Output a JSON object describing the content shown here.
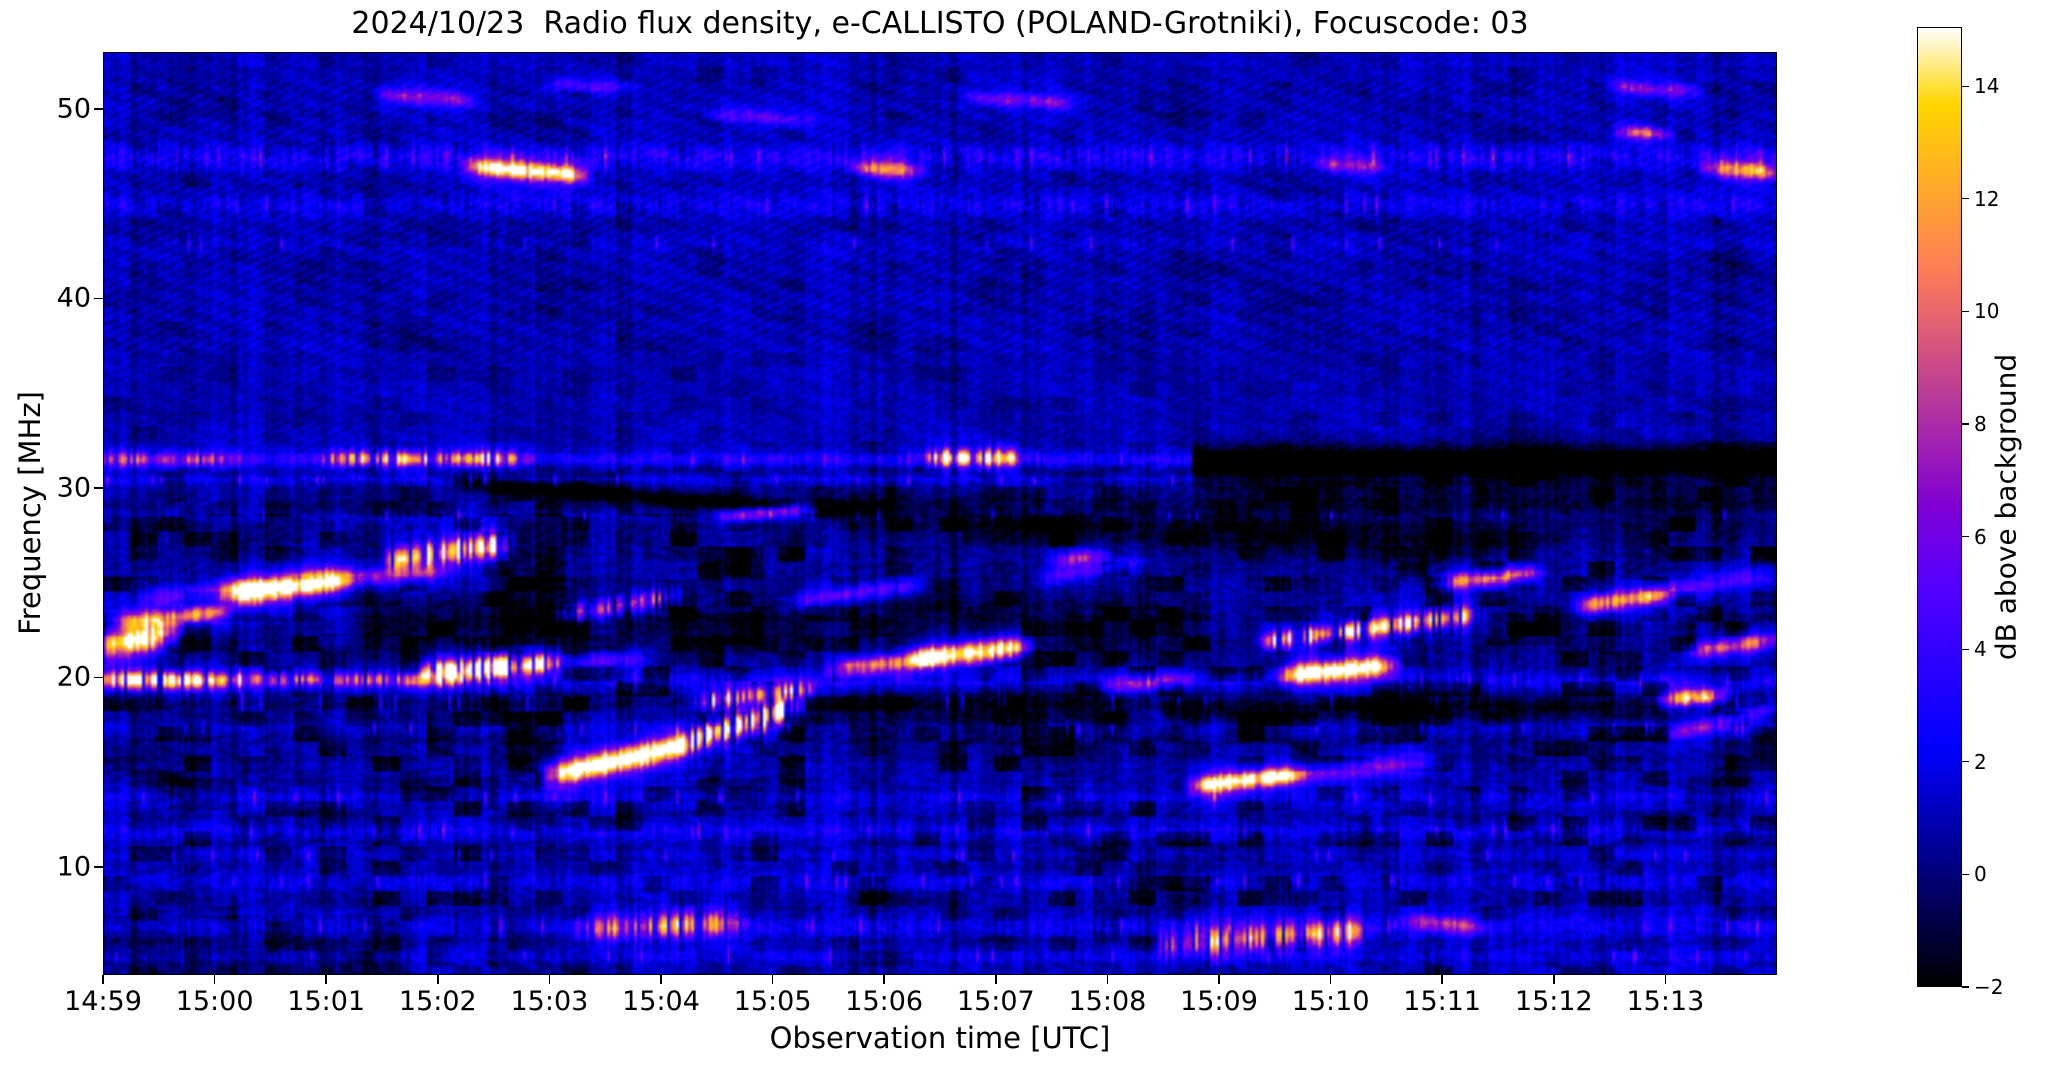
{
  "chart_data": {
    "type": "heatmap",
    "title": "2024/10/23  Radio flux density, e-CALLISTO (POLAND-Grotniki), Focuscode: 03",
    "xlabel": "Observation time [UTC]",
    "ylabel": "Frequency [MHz]",
    "colorbar_label": "dB above background",
    "colormap": "gnuplot2",
    "x_ticks": [
      "14:59",
      "15:00",
      "15:01",
      "15:02",
      "15:03",
      "15:04",
      "15:05",
      "15:06",
      "15:07",
      "15:08",
      "15:09",
      "15:10",
      "15:11",
      "15:12",
      "15:13"
    ],
    "x_tick_minutes": [
      0,
      1,
      2,
      3,
      4,
      5,
      6,
      7,
      8,
      9,
      10,
      11,
      12,
      13,
      14
    ],
    "time_range_minutes": [
      0,
      15
    ],
    "y_ticks": [
      50,
      40,
      30,
      20,
      10
    ],
    "freq_range_mhz": [
      4.3,
      53.0
    ],
    "colorbar_ticks": [
      -2,
      0,
      2,
      4,
      6,
      8,
      10,
      12,
      14
    ],
    "colorbar_tick_labels": [
      "−2",
      "0",
      "2",
      "4",
      "6",
      "8",
      "10",
      "12",
      "14"
    ],
    "value_range_db": [
      -2,
      15.05
    ],
    "background": {
      "base_high_band_db": 1.15,
      "base_mid_band_db": 0.62,
      "base_low_band_db": 0.95,
      "mid_band_split_mhz": 15.5,
      "high_band_split_mhz": 32,
      "column_stripe_amp": 0.9,
      "checker_amp": 0.62,
      "moire_amp": 0.8,
      "speckle_amp": 1.05
    },
    "rfi_bands": [
      {
        "f": 47.45,
        "hw": 0.45,
        "a": 1.4,
        "spk": 2.8
      },
      {
        "f": 44.95,
        "hw": 0.42,
        "a": 0.9,
        "spk": 2.2
      },
      {
        "f": 42.9,
        "hw": 0.25,
        "a": 0.4,
        "spk": 1.0
      },
      {
        "f": 31.5,
        "hw": 0.28,
        "a": 2.6,
        "spk": 1.5,
        "t0": 0,
        "t1": 9.75
      },
      {
        "f": 31.45,
        "hw": 0.55,
        "a": -4.5,
        "spk": 0,
        "t0": 9.75,
        "t1": 15
      },
      {
        "f": 30.4,
        "hw": 0.22,
        "a": 1.3,
        "spk": 0.9,
        "t0": 0,
        "t1": 9.75
      },
      {
        "f": 28.55,
        "hw": 0.2,
        "a": 0.7,
        "spk": 0.8
      },
      {
        "f": 19.85,
        "hw": 0.33,
        "a": 1.5,
        "spk": 1.7
      },
      {
        "f": 18.7,
        "hw": 0.3,
        "a": -1.1,
        "spk": 0.9
      },
      {
        "f": 18.2,
        "hw": 0.35,
        "a": -1.6,
        "spk": 0,
        "t0": 9.5,
        "t1": 15
      },
      {
        "f": 17.3,
        "hw": 0.25,
        "a": 0.7,
        "spk": 1.0
      },
      {
        "f": 13.65,
        "hw": 0.3,
        "a": 1.0,
        "spk": 1.4
      },
      {
        "f": 11.9,
        "hw": 0.33,
        "a": 1.3,
        "spk": 1.6
      },
      {
        "f": 10.6,
        "hw": 0.25,
        "a": 0.6,
        "spk": 1.0
      },
      {
        "f": 9.25,
        "hw": 0.3,
        "a": 1.0,
        "spk": 1.4
      },
      {
        "f": 6.9,
        "hw": 0.35,
        "a": 1.3,
        "spk": 1.5
      },
      {
        "f": 5.3,
        "hw": 0.3,
        "a": 0.9,
        "spk": 1.3
      }
    ],
    "features": [
      {
        "t0": 0,
        "t1": 0.6,
        "f0": 21.7,
        "f1": 22.3,
        "w": 0.5,
        "a": 13,
        "s": 0
      },
      {
        "t0": 0.15,
        "t1": 1.1,
        "f0": 22.9,
        "f1": 23.45,
        "w": 0.3,
        "a": 9,
        "s": 0
      },
      {
        "t0": 0.35,
        "t1": 1.45,
        "f0": 24.2,
        "f1": 24.8,
        "w": 0.3,
        "a": 3,
        "s": 0
      },
      {
        "t0": 1.1,
        "t1": 2.15,
        "f0": 24.4,
        "f1": 25.15,
        "w": 0.42,
        "a": 14.8,
        "s": 0
      },
      {
        "t0": 2.05,
        "t1": 3.05,
        "f0": 25.15,
        "f1": 25.6,
        "w": 0.3,
        "a": 6,
        "s": 0
      },
      {
        "t0": 2.9,
        "t1": 4.0,
        "f0": 20.25,
        "f1": 20.75,
        "w": 0.33,
        "a": 13.5,
        "s": 1
      },
      {
        "t0": 3.95,
        "t1": 4.85,
        "f0": 20.75,
        "f1": 21.0,
        "w": 0.3,
        "a": 4,
        "s": 0
      },
      {
        "t0": 2.6,
        "t1": 3.6,
        "f0": 26.2,
        "f1": 27.1,
        "w": 0.4,
        "a": 12,
        "s": 1
      },
      {
        "t0": 4.1,
        "t1": 5.15,
        "f0": 23.3,
        "f1": 24.3,
        "w": 0.35,
        "a": 5.5,
        "s": 1
      },
      {
        "t0": 4.0,
        "t1": 5.2,
        "f0": 14.8,
        "f1": 16.4,
        "w": 0.42,
        "a": 15.2,
        "s": 0
      },
      {
        "t0": 5.15,
        "t1": 6.2,
        "f0": 16.4,
        "f1": 18.5,
        "w": 0.38,
        "a": 11,
        "s": 1
      },
      {
        "t0": 5.35,
        "t1": 6.35,
        "f0": 18.7,
        "f1": 19.4,
        "w": 0.3,
        "a": 7.5,
        "s": 1
      },
      {
        "t0": 5.55,
        "t1": 6.35,
        "f0": 28.5,
        "f1": 28.9,
        "w": 0.22,
        "a": 6.5,
        "s": 0
      },
      {
        "t0": 6.15,
        "t1": 7.35,
        "f0": 24.0,
        "f1": 24.9,
        "w": 0.3,
        "a": 4.2,
        "s": 0
      },
      {
        "t0": 6.55,
        "t1": 7.45,
        "f0": 20.4,
        "f1": 21.0,
        "w": 0.3,
        "a": 8.5,
        "s": 0
      },
      {
        "t0": 7.3,
        "t1": 8.25,
        "f0": 21.0,
        "f1": 21.6,
        "w": 0.36,
        "a": 14.5,
        "s": 0
      },
      {
        "t0": 8.4,
        "t1": 9.3,
        "f0": 25.2,
        "f1": 26.1,
        "w": 0.3,
        "a": 3.2,
        "s": 0
      },
      {
        "t0": 8.55,
        "t1": 8.95,
        "f0": 26.2,
        "f1": 26.45,
        "w": 0.25,
        "a": 6,
        "s": 0
      },
      {
        "t0": 8.95,
        "t1": 9.75,
        "f0": 19.5,
        "f1": 19.9,
        "w": 0.3,
        "a": 4,
        "s": 0
      },
      {
        "t0": 9.8,
        "t1": 10.7,
        "f0": 14.3,
        "f1": 14.85,
        "w": 0.3,
        "a": 15,
        "s": 0
      },
      {
        "t0": 10.65,
        "t1": 11.95,
        "f0": 14.85,
        "f1": 15.6,
        "w": 0.35,
        "a": 4.5,
        "s": 0
      },
      {
        "t0": 10.6,
        "t1": 11.55,
        "f0": 20.15,
        "f1": 20.65,
        "w": 0.33,
        "a": 14,
        "s": 0
      },
      {
        "t0": 10.4,
        "t1": 11.4,
        "f0": 21.9,
        "f1": 22.6,
        "w": 0.3,
        "a": 8.8,
        "s": 1
      },
      {
        "t0": 11.35,
        "t1": 12.3,
        "f0": 22.6,
        "f1": 23.3,
        "w": 0.33,
        "a": 9.2,
        "s": 1
      },
      {
        "t0": 12.0,
        "t1": 12.85,
        "f0": 25.0,
        "f1": 25.5,
        "w": 0.28,
        "a": 8,
        "s": 0
      },
      {
        "t0": 13.25,
        "t1": 14.0,
        "f0": 23.8,
        "f1": 24.4,
        "w": 0.3,
        "a": 9.5,
        "s": 0
      },
      {
        "t0": 13.95,
        "t1": 15,
        "f0": 24.4,
        "f1": 25.6,
        "w": 0.35,
        "a": 3.5,
        "s": 0
      },
      {
        "t0": 14.0,
        "t1": 14.5,
        "f0": 18.8,
        "f1": 19.1,
        "w": 0.28,
        "a": 11,
        "s": 0
      },
      {
        "t0": 14.25,
        "t1": 15,
        "f0": 21.4,
        "f1": 22.0,
        "w": 0.3,
        "a": 7.5,
        "s": 0
      },
      {
        "t0": 14.05,
        "t1": 15,
        "f0": 17.0,
        "f1": 18.4,
        "w": 0.3,
        "a": 4.5,
        "s": 0
      },
      {
        "t0": 2.5,
        "t1": 3.3,
        "f0": 50.75,
        "f1": 50.45,
        "w": 0.28,
        "a": 4.8,
        "s": 0
      },
      {
        "t0": 4.0,
        "t1": 4.7,
        "f0": 51.3,
        "f1": 51.1,
        "w": 0.22,
        "a": 3.2,
        "s": 0
      },
      {
        "t0": 3.3,
        "t1": 4.3,
        "f0": 46.95,
        "f1": 46.5,
        "w": 0.3,
        "a": 12.5,
        "s": 0
      },
      {
        "t0": 5.45,
        "t1": 6.35,
        "f0": 49.7,
        "f1": 49.4,
        "w": 0.25,
        "a": 3.6,
        "s": 0
      },
      {
        "t0": 7.75,
        "t1": 8.7,
        "f0": 50.6,
        "f1": 50.3,
        "w": 0.25,
        "a": 4.2,
        "s": 0
      },
      {
        "t0": 6.75,
        "t1": 7.3,
        "f0": 46.9,
        "f1": 46.7,
        "w": 0.28,
        "a": 7.5,
        "s": 0
      },
      {
        "t0": 10.9,
        "t1": 11.45,
        "f0": 47.1,
        "f1": 46.9,
        "w": 0.25,
        "a": 4.5,
        "s": 0
      },
      {
        "t0": 13.5,
        "t1": 14.25,
        "f0": 51.2,
        "f1": 50.9,
        "w": 0.25,
        "a": 4.5,
        "s": 0
      },
      {
        "t0": 14.4,
        "t1": 15,
        "f0": 46.9,
        "f1": 46.6,
        "w": 0.3,
        "a": 9,
        "s": 0
      },
      {
        "t0": 13.6,
        "t1": 14.0,
        "f0": 48.8,
        "f1": 48.65,
        "w": 0.22,
        "a": 7,
        "s": 0
      },
      {
        "t0": 2.0,
        "t1": 3.8,
        "f0": 31.55,
        "f1": 31.55,
        "w": 0.26,
        "a": 7,
        "s": 1
      },
      {
        "t0": 7.4,
        "t1": 8.2,
        "f0": 31.6,
        "f1": 31.6,
        "w": 0.28,
        "a": 9.5,
        "s": 1
      },
      {
        "t0": 0,
        "t1": 1.2,
        "f0": 31.5,
        "f1": 31.5,
        "w": 0.28,
        "a": 4,
        "s": 1
      },
      {
        "t0": 0,
        "t1": 1.15,
        "f0": 19.85,
        "f1": 19.85,
        "w": 0.3,
        "a": 9,
        "s": 1
      },
      {
        "t0": 1.15,
        "t1": 3.3,
        "f0": 19.9,
        "f1": 19.9,
        "w": 0.25,
        "a": 5,
        "s": 1
      },
      {
        "t0": 4.3,
        "t1": 5.7,
        "f0": 6.7,
        "f1": 7.1,
        "w": 0.45,
        "a": 6,
        "s": 1
      },
      {
        "t0": 9.5,
        "t1": 11.3,
        "f0": 5.9,
        "f1": 6.6,
        "w": 0.45,
        "a": 7,
        "s": 1
      },
      {
        "t0": 11.7,
        "t1": 12.35,
        "f0": 7.2,
        "f1": 6.8,
        "w": 0.3,
        "a": 5,
        "s": 0
      },
      {
        "t0": 3.15,
        "t1": 6.6,
        "f0": 30.3,
        "f1": 28.8,
        "w": 0.3,
        "a": -3.5,
        "s": 0
      },
      {
        "t0": 6.5,
        "t1": 12.5,
        "f0": 28.9,
        "f1": 26.8,
        "w": 0.8,
        "a": -1.8,
        "s": 0
      },
      {
        "t0": 9.8,
        "t1": 15,
        "f0": 29.5,
        "f1": 29.0,
        "w": 1.2,
        "a": -1.5,
        "s": 0
      },
      {
        "t0": 2.3,
        "t1": 5.3,
        "f0": 22.6,
        "f1": 23.3,
        "w": 1.0,
        "a": -1.8,
        "s": 0
      },
      {
        "t0": 5.5,
        "t1": 9.5,
        "f0": 22.8,
        "f1": 23.0,
        "w": 1.3,
        "a": -1.5,
        "s": 0
      },
      {
        "t0": 6.0,
        "t1": 9.2,
        "f0": 17.6,
        "f1": 18.4,
        "w": 0.9,
        "a": -1.4,
        "s": 0
      }
    ]
  }
}
